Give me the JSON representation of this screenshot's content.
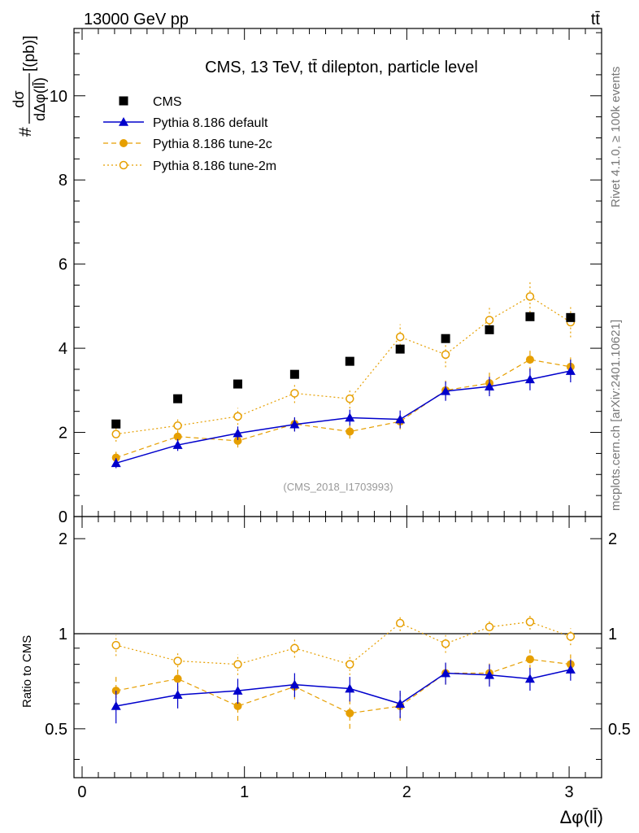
{
  "header": {
    "left": "13000 GeV pp",
    "right": "tt̄"
  },
  "side_text": {
    "rivet": "Rivet 4.1.0, ≥ 100k events",
    "mcplots": "mcplots.cern.ch [arXiv:2401.10621]"
  },
  "chart_data": {
    "type": "scatter",
    "title": "CMS, 13 TeV, tt̄ dilepton, particle level",
    "watermark": "(CMS_2018_I1703993)",
    "xlabel": "Δφ(ll̄)",
    "ylabel": "#dσ/dΔφ(ll̄)[(pb)]",
    "ylabel_num": "dσ",
    "ylabel_den": "dΔφ(ll̄)",
    "ylabel_prefix": "#",
    "ylabel_unit": "[(pb)]",
    "ratio_ylabel": "Ratio to CMS",
    "xlim": [
      -0.05,
      3.2
    ],
    "ylim": [
      0,
      11.6
    ],
    "ratio_ylim": [
      0.35,
      2.35
    ],
    "x_ticks": [
      "0",
      "1",
      "2",
      "3"
    ],
    "y_ticks": [
      "0",
      "2",
      "4",
      "6",
      "8",
      "10"
    ],
    "ratio_ticks": [
      "0.5",
      "1",
      "2"
    ],
    "x": [
      0.209,
      0.589,
      0.959,
      1.309,
      1.649,
      1.959,
      2.239,
      2.509,
      2.759,
      3.009
    ],
    "series": [
      {
        "name": "CMS",
        "color": "#000000",
        "marker": "square",
        "line": "none",
        "values": [
          2.2,
          2.8,
          3.15,
          3.38,
          3.69,
          3.98,
          4.23,
          4.44,
          4.75,
          4.73
        ],
        "errors": [
          0.05,
          0.06,
          0.07,
          0.07,
          0.08,
          0.08,
          0.08,
          0.09,
          0.1,
          0.1
        ],
        "ratio": [
          1,
          1,
          1,
          1,
          1,
          1,
          1,
          1,
          1,
          1
        ]
      },
      {
        "name": "Pythia 8.186 default",
        "color": "#0000cc",
        "marker": "triangle",
        "line": "solid",
        "values": [
          1.27,
          1.7,
          1.98,
          2.19,
          2.35,
          2.31,
          2.98,
          3.09,
          3.26,
          3.46
        ],
        "errors": [
          0.12,
          0.14,
          0.16,
          0.17,
          0.19,
          0.21,
          0.23,
          0.23,
          0.26,
          0.27
        ],
        "ratio": [
          0.59,
          0.64,
          0.66,
          0.69,
          0.67,
          0.6,
          0.75,
          0.74,
          0.72,
          0.77
        ],
        "ratio_errors": [
          0.07,
          0.06,
          0.06,
          0.06,
          0.06,
          0.06,
          0.06,
          0.06,
          0.06,
          0.06
        ]
      },
      {
        "name": "Pythia 8.186 tune-2c",
        "color": "#e69f00",
        "marker": "circle",
        "line": "dashed",
        "values": [
          1.4,
          1.9,
          1.8,
          2.2,
          2.02,
          2.26,
          3.0,
          3.17,
          3.73,
          3.56
        ],
        "errors": [
          0.14,
          0.15,
          0.16,
          0.17,
          0.17,
          0.19,
          0.23,
          0.25,
          0.29,
          0.28
        ],
        "ratio": [
          0.66,
          0.72,
          0.59,
          0.68,
          0.56,
          0.59,
          0.75,
          0.75,
          0.83,
          0.8
        ],
        "ratio_errors": [
          0.07,
          0.06,
          0.06,
          0.06,
          0.06,
          0.06,
          0.06,
          0.06,
          0.06,
          0.06
        ]
      },
      {
        "name": "Pythia 8.186 tune-2m",
        "color": "#e69f00",
        "marker": "open-circle",
        "line": "dotted",
        "values": [
          1.96,
          2.16,
          2.38,
          2.93,
          2.8,
          4.27,
          3.85,
          4.67,
          5.23,
          4.62
        ],
        "errors": [
          0.18,
          0.18,
          0.2,
          0.23,
          0.23,
          0.3,
          0.3,
          0.33,
          0.38,
          0.36
        ],
        "ratio": [
          0.92,
          0.82,
          0.8,
          0.9,
          0.8,
          1.08,
          0.93,
          1.05,
          1.09,
          0.98
        ],
        "ratio_errors": [
          0.07,
          0.06,
          0.06,
          0.06,
          0.06,
          0.06,
          0.06,
          0.06,
          0.06,
          0.06
        ]
      }
    ]
  }
}
